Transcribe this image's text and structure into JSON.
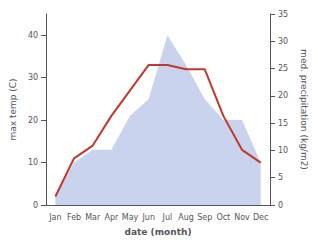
{
  "chart_data": {
    "type": "line",
    "categories": [
      "Jan",
      "Feb",
      "Mar",
      "Apr",
      "May",
      "Jun",
      "Jul",
      "Aug",
      "Sep",
      "Oct",
      "Nov",
      "Dec"
    ],
    "series": [
      {
        "type": "area",
        "color": "#b8c4e8",
        "values": [
          2,
          10,
          13,
          13,
          21,
          25,
          40,
          33,
          25,
          20,
          20,
          10
        ]
      },
      {
        "type": "line",
        "color": "#c0392b",
        "values": [
          2,
          11,
          14,
          21,
          27,
          33,
          33,
          32,
          32,
          21,
          13,
          10
        ]
      }
    ],
    "xlabel": "date (month)",
    "ylabel": "max temp (C)",
    "y2label": "med. precipitation (kg/m2)",
    "ylim": [
      0,
      45
    ],
    "yticks": [
      0,
      10,
      20,
      30,
      40
    ],
    "y2lim": [
      0,
      35
    ],
    "y2ticks": [
      0,
      5,
      10,
      15,
      20,
      25,
      30,
      35
    ],
    "grid": false
  }
}
